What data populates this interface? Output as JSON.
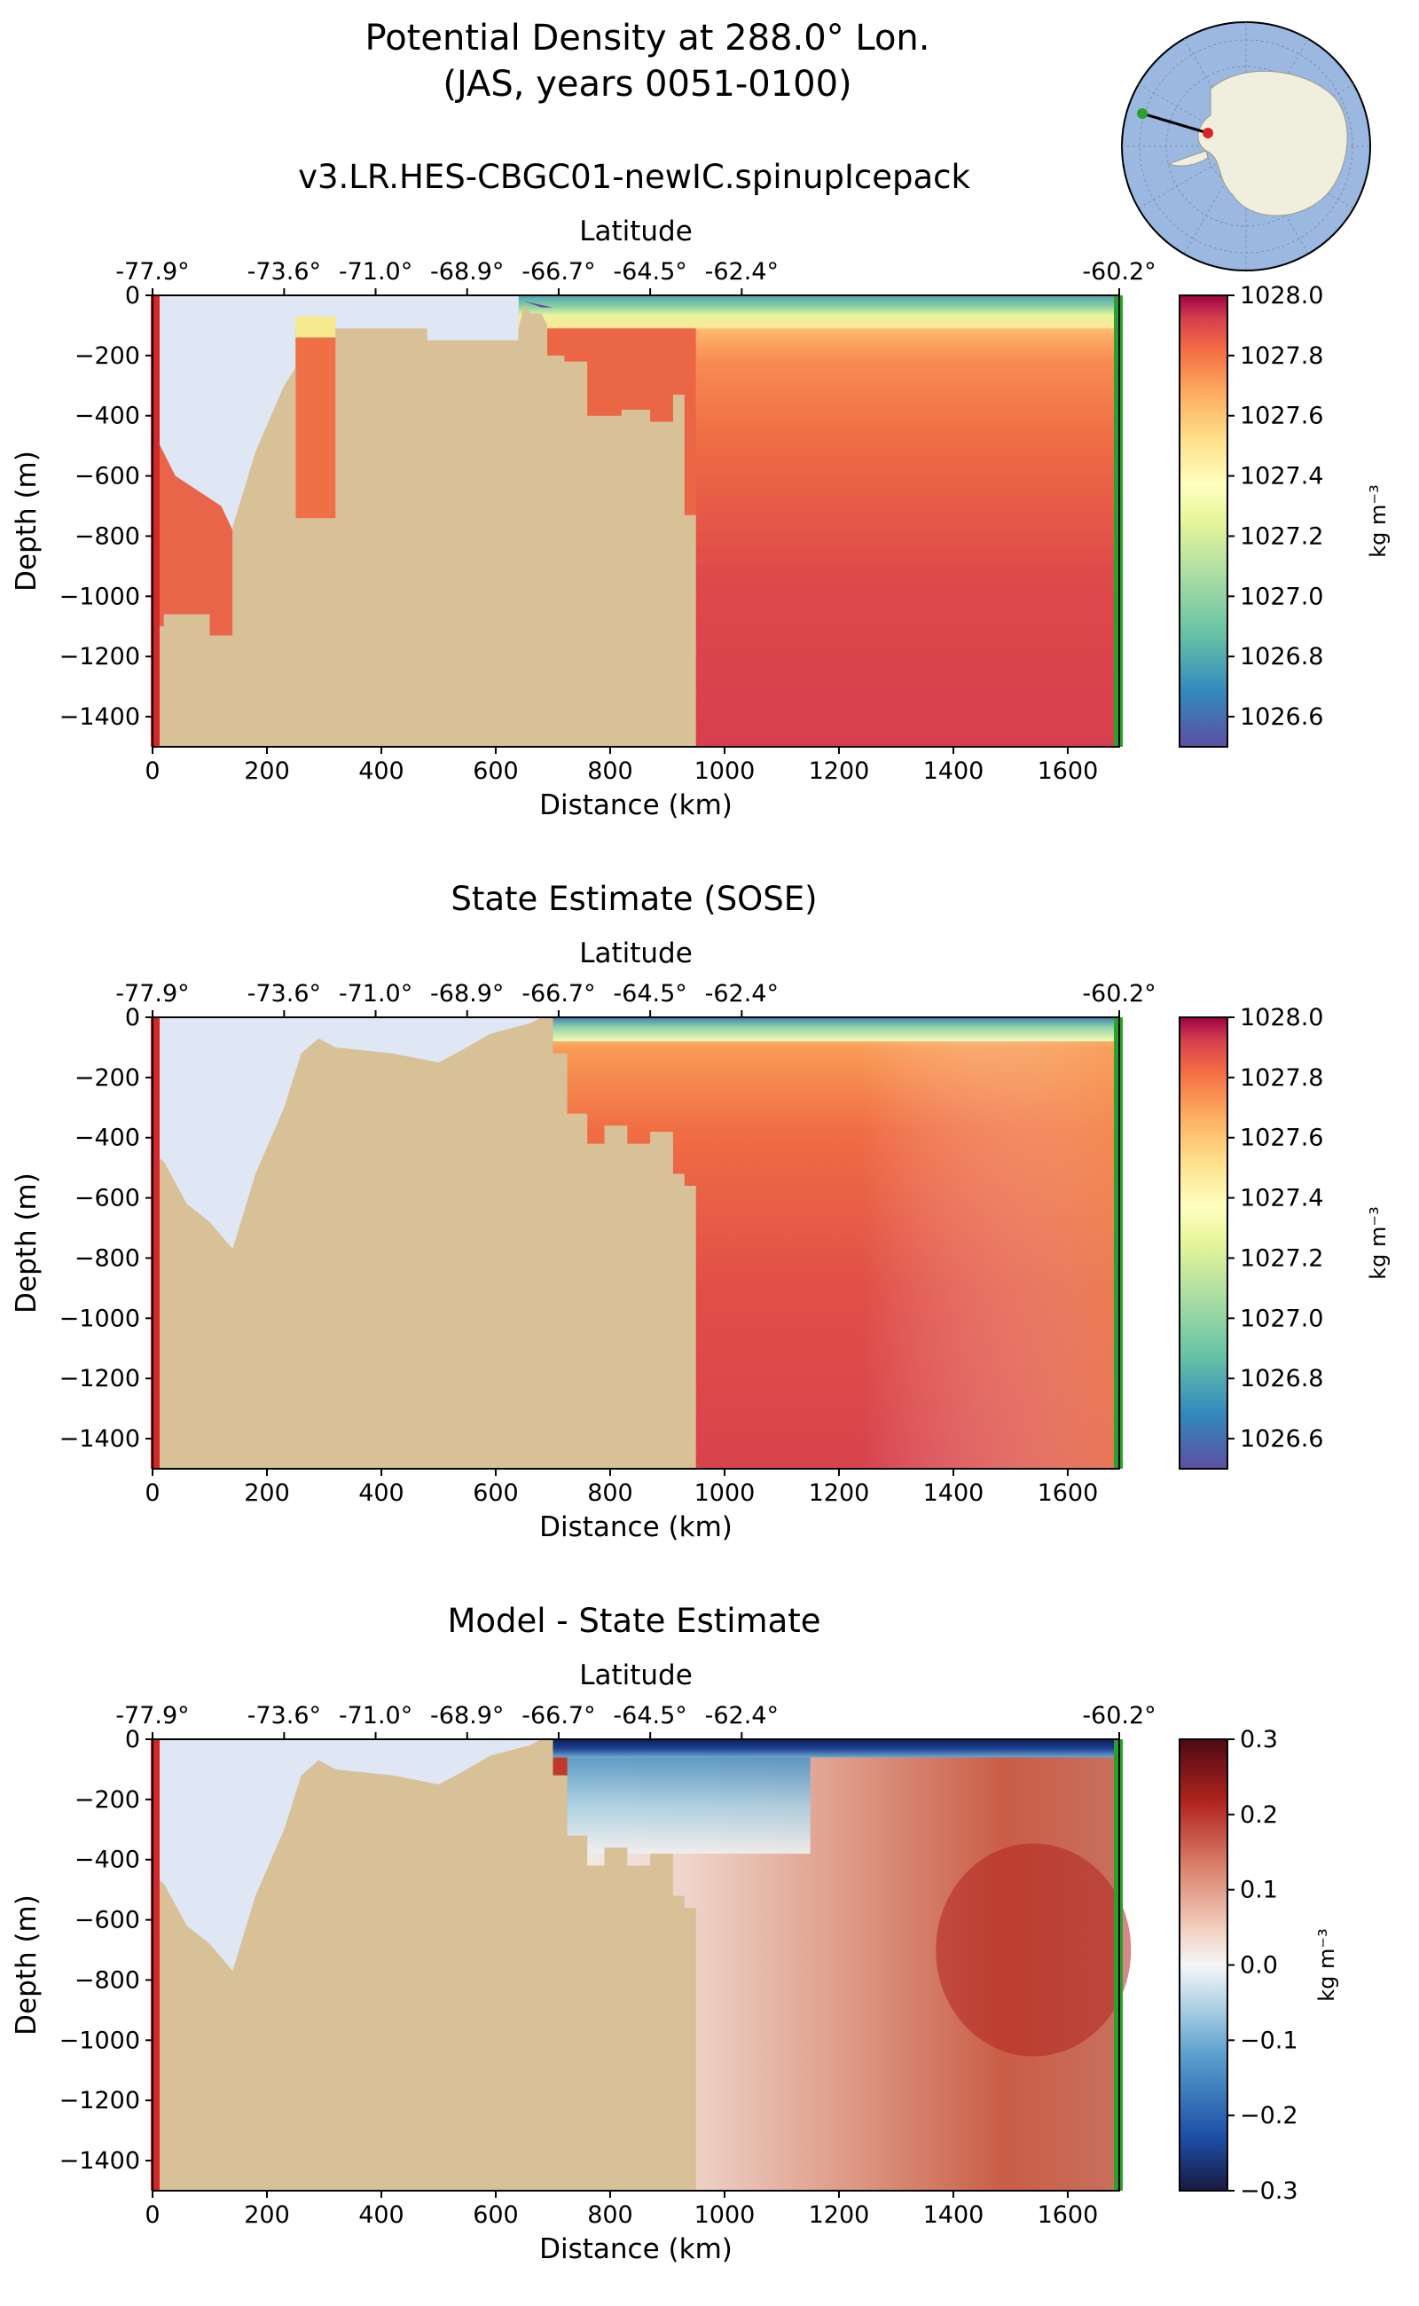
{
  "figure": {
    "title_line1": "Potential Density at 288.0° Lon.",
    "title_line2": "(JAS, years 0051-0100)"
  },
  "map_inset": {
    "name": "antarctica-locator-map",
    "colors": {
      "ocean": "#9bb8e0",
      "land": "#f0eedc",
      "line": "#000000",
      "start_dot": "#d62728",
      "end_dot": "#2ca02c"
    }
  },
  "colors": {
    "bathymetry": "#d8c097",
    "no_data": "#dfe7f4",
    "left_edge": "#d62728",
    "right_edge": "#2ca02c"
  },
  "chart_data": [
    {
      "type": "heatmap",
      "title": "v3.LR.HES-CBGC01-newIC.spinupIcepack",
      "xlabel": "Distance (km)",
      "ylabel": "Depth (m)",
      "x_ticks": [
        "0",
        "200",
        "400",
        "600",
        "800",
        "1000",
        "1200",
        "1400",
        "1600"
      ],
      "y_ticks": [
        "0",
        "−200",
        "−400",
        "−600",
        "−800",
        "−1000",
        "−1200",
        "−1400"
      ],
      "lat_label": "Latitude",
      "lat_ticks": [
        "-77.9°",
        "-73.6°",
        "-71.0°",
        "-68.9°",
        "-66.7°",
        "-64.5°",
        "-62.4°",
        "-60.2°"
      ],
      "xlim": [
        0,
        1690
      ],
      "ylim": [
        -1500,
        0
      ],
      "colorbar": {
        "label": "kg m⁻³",
        "ticks": [
          "1028.0",
          "1027.8",
          "1027.6",
          "1027.4",
          "1027.2",
          "1027.0",
          "1026.8",
          "1026.6"
        ],
        "range": [
          1026.5,
          1028.0
        ],
        "colormap": "Spectral_r"
      }
    },
    {
      "type": "heatmap",
      "title": "State Estimate (SOSE)",
      "xlabel": "Distance (km)",
      "ylabel": "Depth (m)",
      "x_ticks": [
        "0",
        "200",
        "400",
        "600",
        "800",
        "1000",
        "1200",
        "1400",
        "1600"
      ],
      "y_ticks": [
        "0",
        "−200",
        "−400",
        "−600",
        "−800",
        "−1000",
        "−1200",
        "−1400"
      ],
      "lat_label": "Latitude",
      "lat_ticks": [
        "-77.9°",
        "-73.6°",
        "-71.0°",
        "-68.9°",
        "-66.7°",
        "-64.5°",
        "-62.4°",
        "-60.2°"
      ],
      "xlim": [
        0,
        1690
      ],
      "ylim": [
        -1500,
        0
      ],
      "colorbar": {
        "label": "kg m⁻³",
        "ticks": [
          "1028.0",
          "1027.8",
          "1027.6",
          "1027.4",
          "1027.2",
          "1027.0",
          "1026.8",
          "1026.6"
        ],
        "range": [
          1026.5,
          1028.0
        ],
        "colormap": "Spectral_r"
      }
    },
    {
      "type": "heatmap",
      "title": "Model - State Estimate",
      "xlabel": "Distance (km)",
      "ylabel": "Depth (m)",
      "x_ticks": [
        "0",
        "200",
        "400",
        "600",
        "800",
        "1000",
        "1200",
        "1400",
        "1600"
      ],
      "y_ticks": [
        "0",
        "−200",
        "−400",
        "−600",
        "−800",
        "−1000",
        "−1200",
        "−1400"
      ],
      "lat_label": "Latitude",
      "lat_ticks": [
        "-77.9°",
        "-73.6°",
        "-71.0°",
        "-68.9°",
        "-66.7°",
        "-64.5°",
        "-62.4°",
        "-60.2°"
      ],
      "xlim": [
        0,
        1690
      ],
      "ylim": [
        -1500,
        0
      ],
      "colorbar": {
        "label": "kg m⁻³",
        "ticks": [
          "0.3",
          "0.2",
          "0.1",
          "0.0",
          "−0.1",
          "−0.2",
          "−0.3"
        ],
        "range": [
          -0.3,
          0.3
        ],
        "colormap": "RdBu_r"
      }
    }
  ]
}
